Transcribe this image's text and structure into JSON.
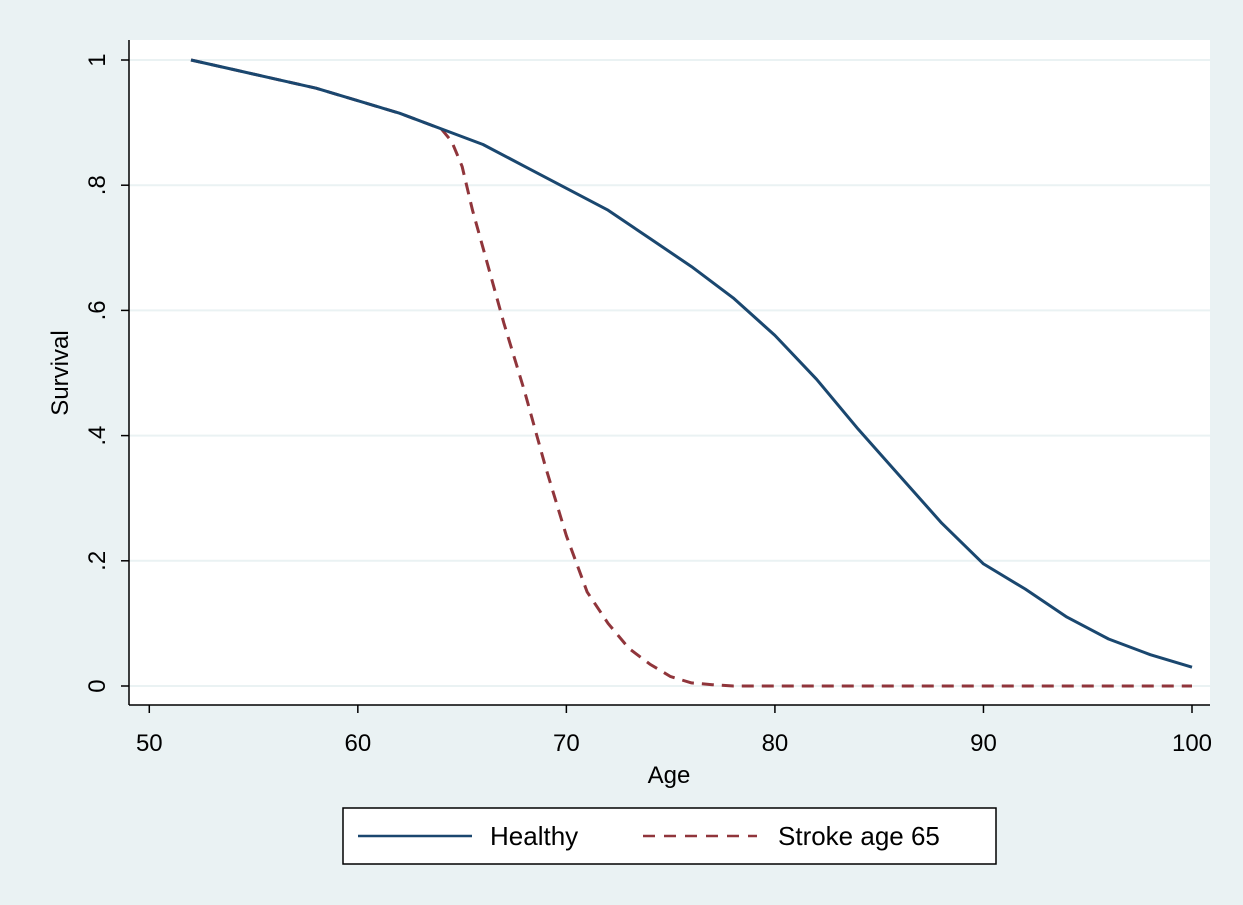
{
  "chart_data": {
    "type": "line",
    "title": "",
    "xlabel": "Age",
    "ylabel": "Survival",
    "xlim": [
      50,
      100
    ],
    "ylim": [
      0,
      1
    ],
    "x_ticks": [
      50,
      60,
      70,
      80,
      90,
      100
    ],
    "x_tick_labels": [
      "50",
      "60",
      "70",
      "80",
      "90",
      "100"
    ],
    "y_ticks": [
      0,
      0.2,
      0.4,
      0.6,
      0.8,
      1
    ],
    "y_tick_labels": [
      "0",
      ".2",
      ".4",
      ".6",
      ".8",
      "1"
    ],
    "grid": "horizontal",
    "legend": "bottom",
    "colors": {
      "outer_background": "#eaf2f3",
      "plot_background": "#ffffff",
      "gridline": "#eaf2f3",
      "healthy": "#1a476f",
      "stroke": "#90353b"
    },
    "series": [
      {
        "name": "Healthy",
        "style": "solid",
        "x": [
          52,
          54,
          56,
          58,
          60,
          62,
          64,
          66,
          68,
          70,
          72,
          74,
          76,
          78,
          80,
          82,
          84,
          86,
          88,
          90,
          92,
          94,
          96,
          98,
          100
        ],
        "y": [
          1.0,
          0.985,
          0.97,
          0.955,
          0.935,
          0.915,
          0.89,
          0.865,
          0.83,
          0.795,
          0.76,
          0.715,
          0.67,
          0.62,
          0.56,
          0.49,
          0.41,
          0.335,
          0.26,
          0.195,
          0.155,
          0.11,
          0.075,
          0.05,
          0.03
        ]
      },
      {
        "name": "Stroke age 65",
        "style": "dashed",
        "x": [
          52,
          54,
          56,
          58,
          60,
          62,
          64,
          64.5,
          65,
          65.5,
          66,
          67,
          68,
          69,
          70,
          71,
          72,
          73,
          74,
          75,
          76,
          77,
          78,
          80,
          85,
          90,
          95,
          100
        ],
        "y": [
          1.0,
          0.985,
          0.97,
          0.955,
          0.935,
          0.915,
          0.89,
          0.87,
          0.83,
          0.76,
          0.7,
          0.58,
          0.47,
          0.35,
          0.24,
          0.15,
          0.1,
          0.06,
          0.035,
          0.015,
          0.005,
          0.002,
          0.0,
          0.0,
          0.0,
          0.0,
          0.0,
          0.0
        ]
      }
    ]
  }
}
